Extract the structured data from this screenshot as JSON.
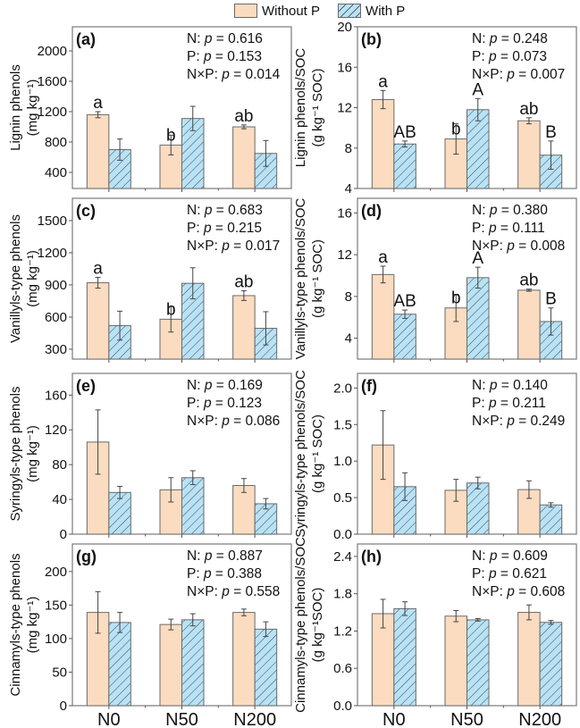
{
  "legend": {
    "items": [
      {
        "label": "Without P",
        "color": "#fcdcc0",
        "pattern": "solid"
      },
      {
        "label": "With P",
        "color": "#b8e2f6",
        "pattern": "hatched"
      }
    ]
  },
  "chart_data": [
    {
      "type": "bar",
      "panel_label": "(a)",
      "categories": [
        "N0",
        "N50",
        "N200"
      ],
      "ylabel": [
        "Lignin phenols",
        "(mg kg⁻¹)"
      ],
      "yticks": [
        400,
        800,
        1200,
        1600,
        2000
      ],
      "ylim": [
        188,
        2318
      ],
      "stats": [
        "N: p = 0.616",
        "P: p = 0.153",
        "N×P: p = 0.014"
      ],
      "series": [
        {
          "name": "Without P",
          "values": [
            1160,
            760,
            1000
          ],
          "errors": [
            40,
            130,
            25
          ],
          "letters": [
            "a",
            "b",
            "ab"
          ]
        },
        {
          "name": "With P",
          "values": [
            700,
            1110,
            650
          ],
          "errors": [
            140,
            160,
            170
          ],
          "letters": [
            "",
            "",
            ""
          ]
        }
      ],
      "show_xticklabels": false
    },
    {
      "type": "bar",
      "panel_label": "(b)",
      "categories": [
        "N0",
        "N50",
        "N200"
      ],
      "ylabel": [
        "Lignin phenols/SOC",
        "(g kg⁻¹ SOC)"
      ],
      "yticks": [
        4,
        8,
        12,
        16,
        20
      ],
      "ylim": [
        4,
        20
      ],
      "stats": [
        "N: p = 0.248",
        "P: p = 0.073",
        "N×P: p = 0.007"
      ],
      "series": [
        {
          "name": "Without P",
          "values": [
            12.8,
            8.9,
            10.7
          ],
          "errors": [
            0.9,
            1.5,
            0.3
          ],
          "letters": [
            "a",
            "b",
            "ab"
          ]
        },
        {
          "name": "With P",
          "values": [
            8.4,
            11.8,
            7.3
          ],
          "errors": [
            0.3,
            1.1,
            1.4
          ],
          "letters": [
            "AB",
            "A",
            "B"
          ]
        }
      ],
      "show_xticklabels": false
    },
    {
      "type": "bar",
      "panel_label": "(c)",
      "categories": [
        "N0",
        "N50",
        "N200"
      ],
      "ylabel": [
        "Vanillyls-type phenols",
        "(mg kg⁻¹)"
      ],
      "yticks": [
        300,
        600,
        900,
        1200,
        1500
      ],
      "ylim": [
        208,
        1708
      ],
      "stats": [
        "N: p = 0.683",
        "P: p = 0.215",
        "N×P: p = 0.017"
      ],
      "series": [
        {
          "name": "Without P",
          "values": [
            920,
            580,
            800
          ],
          "errors": [
            50,
            120,
            45
          ],
          "letters": [
            "a",
            "b",
            "ab"
          ]
        },
        {
          "name": "With P",
          "values": [
            520,
            915,
            495
          ],
          "errors": [
            135,
            145,
            155
          ],
          "letters": [
            "",
            "",
            ""
          ]
        }
      ],
      "show_xticklabels": false
    },
    {
      "type": "bar",
      "panel_label": "(d)",
      "categories": [
        "N0",
        "N50",
        "N200"
      ],
      "ylabel": [
        "Vanillyls-type phenols/SOC",
        "(g kg⁻¹ SOC)"
      ],
      "yticks": [
        4,
        8,
        12,
        16
      ],
      "ylim": [
        2,
        17.4
      ],
      "stats": [
        "N: p = 0.380",
        "P: p = 0.111",
        "N×P: p = 0.008"
      ],
      "series": [
        {
          "name": "Without P",
          "values": [
            10.1,
            6.9,
            8.6
          ],
          "errors": [
            0.8,
            1.3,
            0.1
          ],
          "letters": [
            "a",
            "b",
            "ab"
          ]
        },
        {
          "name": "With P",
          "values": [
            6.3,
            9.8,
            5.6
          ],
          "errors": [
            0.4,
            1.0,
            1.3
          ],
          "letters": [
            "AB",
            "A",
            "B"
          ]
        }
      ],
      "show_xticklabels": false
    },
    {
      "type": "bar",
      "panel_label": "(e)",
      "categories": [
        "N0",
        "N50",
        "N200"
      ],
      "ylabel": [
        "Syringyls-type phenols",
        "(mg kg⁻¹)"
      ],
      "yticks": [
        0,
        40,
        80,
        120,
        160
      ],
      "ylim": [
        0,
        185
      ],
      "stats": [
        "N: p = 0.169",
        "P: p = 0.123",
        "N×P: p = 0.086"
      ],
      "series": [
        {
          "name": "Without P",
          "values": [
            106,
            51,
            56
          ],
          "errors": [
            37,
            14,
            8
          ],
          "letters": [
            "",
            "",
            ""
          ]
        },
        {
          "name": "With P",
          "values": [
            48,
            65,
            35
          ],
          "errors": [
            7,
            8,
            6
          ],
          "letters": [
            "",
            "",
            ""
          ]
        }
      ],
      "show_xticklabels": false
    },
    {
      "type": "bar",
      "panel_label": "(f)",
      "categories": [
        "N0",
        "N50",
        "N200"
      ],
      "ylabel": [
        "Syringyls-type phenols/SOC",
        "(g kg⁻¹ SOC)"
      ],
      "yticks": [
        "0.0",
        "0.5",
        "1.0",
        "1.5",
        "2.0"
      ],
      "ylim": [
        0,
        2.2
      ],
      "stats": [
        "N: p = 0.140",
        "P: p = 0.211",
        "N×P: p = 0.249"
      ],
      "series": [
        {
          "name": "Without P",
          "values": [
            1.22,
            0.6,
            0.61
          ],
          "errors": [
            0.47,
            0.15,
            0.12
          ],
          "letters": [
            "",
            "",
            ""
          ]
        },
        {
          "name": "With P",
          "values": [
            0.65,
            0.7,
            0.4
          ],
          "errors": [
            0.19,
            0.08,
            0.03
          ],
          "letters": [
            "",
            "",
            ""
          ]
        }
      ],
      "show_xticklabels": false
    },
    {
      "type": "bar",
      "panel_label": "(g)",
      "categories": [
        "N0",
        "N50",
        "N200"
      ],
      "ylabel": [
        "Cinnamyls-type phenols",
        "(mg kg⁻¹)"
      ],
      "yticks": [
        0,
        50,
        100,
        150,
        200
      ],
      "ylim": [
        0,
        241
      ],
      "stats": [
        "N: p = 0.887",
        "P: p = 0.388",
        "N×P: p = 0.558"
      ],
      "series": [
        {
          "name": "Without P",
          "values": [
            139,
            121,
            139
          ],
          "errors": [
            31,
            8,
            5
          ],
          "letters": [
            "",
            "",
            ""
          ]
        },
        {
          "name": "With P",
          "values": [
            124,
            128,
            114
          ],
          "errors": [
            15,
            9,
            11
          ],
          "letters": [
            "",
            "",
            ""
          ]
        }
      ],
      "show_xticklabels": true
    },
    {
      "type": "bar",
      "panel_label": "(h)",
      "categories": [
        "N0",
        "N50",
        "N200"
      ],
      "ylabel": [
        "Cinnamyls-type phenols/SOC",
        "(g kg⁻¹SOC)"
      ],
      "yticks": [
        "0.0",
        "0.6",
        "1.2",
        "1.8",
        "2.4"
      ],
      "ylim": [
        0,
        2.6
      ],
      "stats": [
        "N: p = 0.609",
        "P: p = 0.621",
        "N×P: p = 0.608"
      ],
      "series": [
        {
          "name": "Without P",
          "values": [
            1.48,
            1.44,
            1.5
          ],
          "errors": [
            0.23,
            0.09,
            0.12
          ],
          "letters": [
            "",
            "",
            ""
          ]
        },
        {
          "name": "With P",
          "values": [
            1.56,
            1.38,
            1.34
          ],
          "errors": [
            0.11,
            0.02,
            0.03
          ],
          "letters": [
            "",
            "",
            ""
          ]
        }
      ],
      "show_xticklabels": true
    }
  ]
}
